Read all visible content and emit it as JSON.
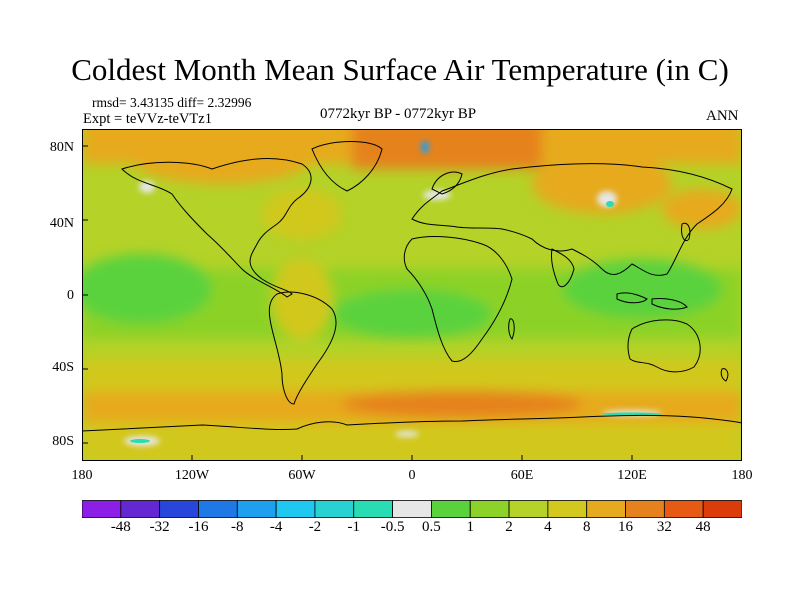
{
  "header": {
    "title": "Coldest Month Mean Surface Air Temperature (in C)",
    "stats": "rmsd= 3.43135  diff= 2.32996",
    "expt": "Expt = teVVz-teVTz1",
    "period": "0772kyr BP - 0772kyr BP",
    "season": "ANN"
  },
  "axes": {
    "lat_labels": [
      "80N",
      "40N",
      "0",
      "40S",
      "80S"
    ],
    "lon_labels": [
      "180",
      "120W",
      "60W",
      "0",
      "60E",
      "120E",
      "180"
    ]
  },
  "colorbar": {
    "labels": [
      "-48",
      "-32",
      "-16",
      "-8",
      "-4",
      "-2",
      "-1",
      "-0.5",
      "0.5",
      "1",
      "2",
      "4",
      "8",
      "16",
      "32",
      "48"
    ],
    "colors": [
      "#8c1ee6",
      "#6428d2",
      "#2846dc",
      "#1e78e6",
      "#1ea0f0",
      "#1ec8f0",
      "#28d2d2",
      "#28dcb4",
      "#e6e6e6",
      "#5ad23c",
      "#8cd228",
      "#b4d228",
      "#d2c81e",
      "#e6aa1e",
      "#e6821e",
      "#e65a14",
      "#dc3c0a"
    ]
  }
}
